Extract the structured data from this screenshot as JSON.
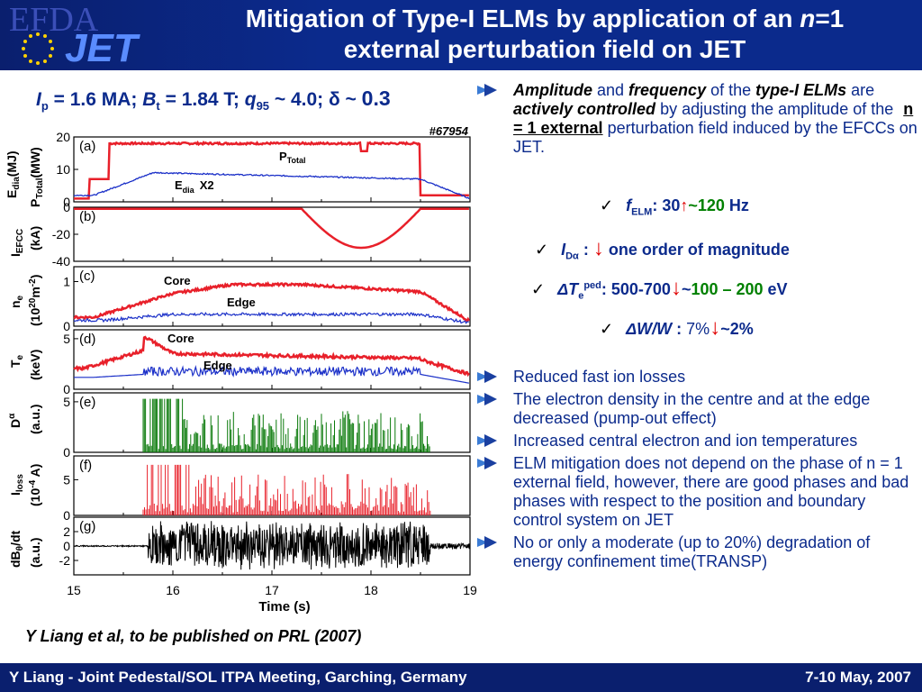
{
  "header": {
    "logo_efda": "EFDA",
    "logo_jet": "JET",
    "title_line1_a": "Mitigation of Type-I ELMs by application of an ",
    "title_line1_n": "n",
    "title_line1_b": "=1",
    "title_line2": "external perturbation field on JET"
  },
  "params": {
    "ip_sym": "I",
    "ip_sub": "p",
    "ip_val": " = 1.6 MA; ",
    "bt_sym": "B",
    "bt_sub": "t",
    "bt_val": " = 1.84 T; ",
    "q_sym": "q",
    "q_sub": "95",
    "q_val": " ~ 4.0; ",
    "delta": "δ ~ ",
    "delta_val": "0.3"
  },
  "plot": {
    "shot": "#67954",
    "xlabel": "Time (s)",
    "x_ticks": [
      "15",
      "16",
      "17",
      "18",
      "19"
    ],
    "panel_labels": [
      "(a)",
      "(b)",
      "(c)",
      "(d)",
      "(e)",
      "(f)",
      "(g)"
    ],
    "ylabels": {
      "a1": "E",
      "a1_sub": "dia",
      "a1_unit": "(MJ)",
      "a2": "P",
      "a2_sub": "Total",
      "a2_unit": "(MW)",
      "b": "I",
      "b_sub": "EFCC",
      "b_unit": "(kA)",
      "c": "n",
      "c_sub": "e",
      "c_unit": "(10",
      "c_exp": "20",
      "c_unit2": "m",
      "c_exp2": "-2",
      "c_unit3": ")",
      "d": "T",
      "d_sub": "e",
      "d_unit": "(keV)",
      "e": "D",
      "e_sub": "α",
      "e_unit": "(a.u.)",
      "f": "I",
      "f_sub": "loss",
      "f_unit": "(10",
      "f_exp": "-4",
      "f_unit2": " A)",
      "g": "dB",
      "g_sub": "θ",
      "g_slash": "/dt",
      "g_unit": "(a.u.)"
    },
    "annotations": {
      "ptotal": "P",
      "ptotal_sub": "Total",
      "edia": "E",
      "edia_sub": "dia",
      "edia_x2": "X2",
      "core_c": "Core",
      "edge_c": "Edge",
      "core_d": "Core",
      "edge_d": "Edge"
    },
    "y_ticks": {
      "a": [
        "20",
        "10",
        "0"
      ],
      "b": [
        "0",
        "-20",
        "-40"
      ],
      "c": [
        "1",
        "0"
      ],
      "d": [
        "5",
        "0"
      ],
      "e": [
        "5",
        "0"
      ],
      "f": [
        "5",
        "0"
      ],
      "g": [
        "2",
        "0",
        "-2"
      ]
    },
    "colors": {
      "red": "#e8202a",
      "blue": "#1a2fc8",
      "green": "#0a7a0a",
      "black": "#000000"
    }
  },
  "citation": "Y Liang et al, to be published on PRL (2007)",
  "bullets": {
    "b1_t1": "Amplitude",
    "b1_t2": " and ",
    "b1_t3": "frequency",
    "b1_t4": " of the ",
    "b1_t5": "type-I ELMs",
    "b1_t6": " are ",
    "b1_t7": "actively controlled",
    "b1_t8": " by adjusting the amplitude of the ",
    "b1_t9": "n = 1 external",
    "b1_t10": " perturbation field induced by the EFCCs on JET.",
    "c1_sym": "f",
    "c1_sub": "ELM",
    "c1_a": ": 30",
    "c1_tilde": "~",
    "c1_b": "120",
    "c1_c": " Hz",
    "c2_sym": "I",
    "c2_sub": "Dα",
    "c2_a": " : ",
    "c2_b": " one order of magnitude",
    "c3_sym": "ΔT",
    "c3_sub": "e",
    "c3_sup": "ped",
    "c3_a": ": 500-700",
    "c3_tilde": "~",
    "c3_b": "100 – 200",
    "c3_c": " eV",
    "c4_sym": "ΔW/W",
    "c4_a": " : ",
    "c4_b": "7%",
    "c4_tilde": "~",
    "c4_c": "2%",
    "check": "✓",
    "items": [
      "Reduced fast ion losses",
      "The electron density in the centre and at the edge decreased (pump-out effect)",
      "Increased central electron and ion temperatures",
      "ELM mitigation does not depend on the phase of n = 1 external field, however, there are good phases and bad phases with respect to the position and boundary control system on JET",
      "No or only a moderate (up to 20%) degradation of energy confinement time(TRANSP)"
    ]
  },
  "footer": {
    "left": "Y Liang - Joint Pedestal/SOL ITPA Meeting, Garching, Germany",
    "right": "7-10 May, 2007"
  }
}
